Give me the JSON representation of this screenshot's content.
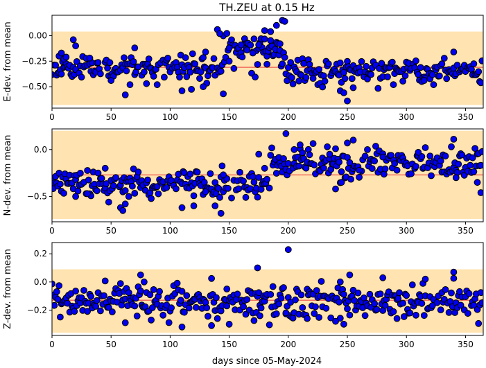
{
  "figure": {
    "title": "TH.ZEU at 0.15 Hz",
    "xlabel": "days since 05-May-2024"
  },
  "colors": {
    "band": "#ffe3b0",
    "mean_line": "#f07060",
    "marker_fill": "#0000ee",
    "marker_edge": "#000000"
  },
  "chart_data": [
    {
      "type": "scatter",
      "ylabel": "E-dev. from mean",
      "xlim": [
        0,
        365
      ],
      "ylim": [
        -0.71,
        0.2
      ],
      "xticks": [
        0,
        50,
        100,
        150,
        200,
        250,
        300,
        350
      ],
      "yticks": [
        0.0,
        -0.25,
        -0.5
      ],
      "ytick_labels": [
        "0.00",
        "−0.25",
        "−0.50"
      ],
      "band": [
        -0.68,
        0.04
      ],
      "mean": -0.31,
      "segments": [
        {
          "x0": 0,
          "x1": 145,
          "mean": -0.32,
          "spread": 0.065,
          "seed": 11
        },
        {
          "x0": 145,
          "x1": 198,
          "mean": -0.14,
          "spread": 0.1,
          "seed": 12
        },
        {
          "x0": 198,
          "x1": 365,
          "mean": -0.36,
          "spread": 0.06,
          "seed": 13
        }
      ],
      "points_x": [
        6,
        8,
        10,
        12,
        18,
        20,
        32,
        50,
        62,
        66,
        70,
        80,
        110,
        128,
        130,
        140,
        142,
        145,
        150,
        160,
        165,
        170,
        175,
        180,
        182,
        185,
        190,
        193,
        195,
        197,
        244,
        247,
        250,
        255,
        315,
        340
      ],
      "points_y": [
        -0.2,
        -0.17,
        -0.23,
        -0.21,
        -0.04,
        -0.1,
        -0.22,
        -0.44,
        -0.58,
        -0.48,
        -0.12,
        -0.47,
        -0.54,
        -0.5,
        -0.16,
        0.06,
        0.02,
        -0.57,
        -0.12,
        -0.09,
        -0.14,
        -0.17,
        -0.09,
        0.05,
        -0.28,
        0.04,
        0.1,
        -0.08,
        0.15,
        0.14,
        -0.54,
        -0.56,
        -0.64,
        -0.51,
        -0.44,
        -0.16
      ]
    },
    {
      "type": "scatter",
      "ylabel": "N-dev. from mean",
      "xlim": [
        0,
        365
      ],
      "ylim": [
        -0.77,
        0.22
      ],
      "xticks": [
        0,
        50,
        100,
        150,
        200,
        250,
        300,
        350
      ],
      "yticks": [
        0.0,
        -0.5
      ],
      "ytick_labels": [
        "0.0",
        "−0.5"
      ],
      "band": [
        -0.74,
        0.2
      ],
      "mean": -0.27,
      "segments": [
        {
          "x0": 0,
          "x1": 185,
          "mean": -0.37,
          "spread": 0.075,
          "seed": 21
        },
        {
          "x0": 185,
          "x1": 365,
          "mean": -0.15,
          "spread": 0.075,
          "seed": 22
        }
      ],
      "points_x": [
        20,
        30,
        45,
        48,
        58,
        60,
        62,
        65,
        110,
        120,
        130,
        138,
        143,
        145,
        175,
        180,
        198,
        205,
        210,
        235,
        240,
        245,
        250,
        255,
        260,
        280,
        290,
        310,
        340,
        342,
        360,
        363
      ],
      "points_y": [
        -0.5,
        -0.47,
        -0.2,
        -0.56,
        -0.62,
        -0.65,
        -0.58,
        -0.5,
        -0.62,
        -0.6,
        -0.45,
        -0.6,
        -0.68,
        -0.27,
        -0.05,
        -0.2,
        0.17,
        0.0,
        0.05,
        -0.05,
        -0.42,
        -0.35,
        0.07,
        0.1,
        -0.22,
        -0.08,
        -0.15,
        -0.03,
        0.11,
        -0.3,
        -0.35,
        -0.46
      ]
    },
    {
      "type": "scatter",
      "ylabel": "Z-dev. from mean",
      "xlim": [
        0,
        365
      ],
      "ylim": [
        -0.38,
        0.28
      ],
      "xticks": [
        0,
        50,
        100,
        150,
        200,
        250,
        300,
        350
      ],
      "yticks": [
        0.2,
        0.0,
        -0.2
      ],
      "ytick_labels": [
        "0.2",
        "0.0",
        "−0.2"
      ],
      "band": [
        -0.36,
        0.09
      ],
      "mean": -0.13,
      "segments": [
        {
          "x0": 0,
          "x1": 365,
          "mean": -0.14,
          "spread": 0.06,
          "seed": 31
        }
      ],
      "points_x": [
        62,
        75,
        78,
        110,
        135,
        140,
        148,
        150,
        174,
        176,
        198,
        200,
        216,
        240,
        244,
        247,
        252,
        280,
        292,
        314,
        316,
        340
      ],
      "points_y": [
        -0.29,
        0.05,
        0.0,
        -0.32,
        -0.31,
        -0.26,
        -0.05,
        -0.3,
        0.1,
        -0.24,
        -0.22,
        0.23,
        -0.26,
        -0.28,
        0.0,
        -0.3,
        0.05,
        0.03,
        -0.26,
        -0.01,
        0.02,
        0.07
      ]
    }
  ]
}
